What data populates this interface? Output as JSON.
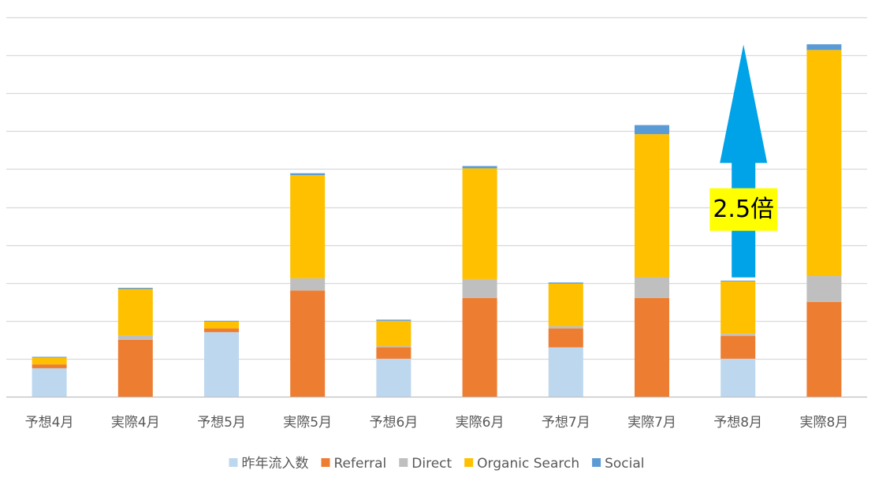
{
  "chart_data": {
    "type": "bar",
    "stacked": true,
    "categories": [
      "予想4月",
      "実際4月",
      "予想5月",
      "実際5月",
      "予想6月",
      "実際6月",
      "予想7月",
      "実際7月",
      "予想8月",
      "実際8月"
    ],
    "series": [
      {
        "name": "昨年流入数",
        "color": "#BDD7EE",
        "values": [
          7.5,
          0,
          17,
          0,
          10,
          0,
          13,
          0,
          10,
          0
        ]
      },
      {
        "name": "Referral",
        "color": "#ED7D31",
        "values": [
          1,
          15,
          1,
          28,
          3,
          26,
          5,
          26,
          6,
          25
        ]
      },
      {
        "name": "Direct",
        "color": "#BFBFBF",
        "values": [
          0,
          1.2,
          0,
          3.2,
          0.3,
          5,
          0.6,
          5.5,
          0.6,
          6.8
        ]
      },
      {
        "name": "Organic Search",
        "color": "#FFC000",
        "values": [
          1.8,
          12.2,
          1.8,
          27.2,
          6.7,
          29.2,
          11.2,
          37.7,
          13.8,
          59.6
        ]
      },
      {
        "name": "Social",
        "color": "#5B9BD5",
        "values": [
          0.2,
          0.3,
          0.2,
          0.5,
          0.3,
          0.6,
          0.3,
          2.4,
          0.2,
          1.5
        ]
      }
    ],
    "ylim": [
      0,
      100
    ],
    "y_gridlines": [
      0,
      10,
      20,
      30,
      40,
      50,
      60,
      70,
      80,
      90,
      100
    ],
    "y_tick_labels_shown": false,
    "legend_position": "bottom",
    "annotation": {
      "text": "2.5倍",
      "from_category": "予想8月",
      "arrow_from_value": 30,
      "arrow_to_value": 93,
      "arrow_color": "#00A2E8",
      "label_background": "#FFFF00"
    }
  }
}
